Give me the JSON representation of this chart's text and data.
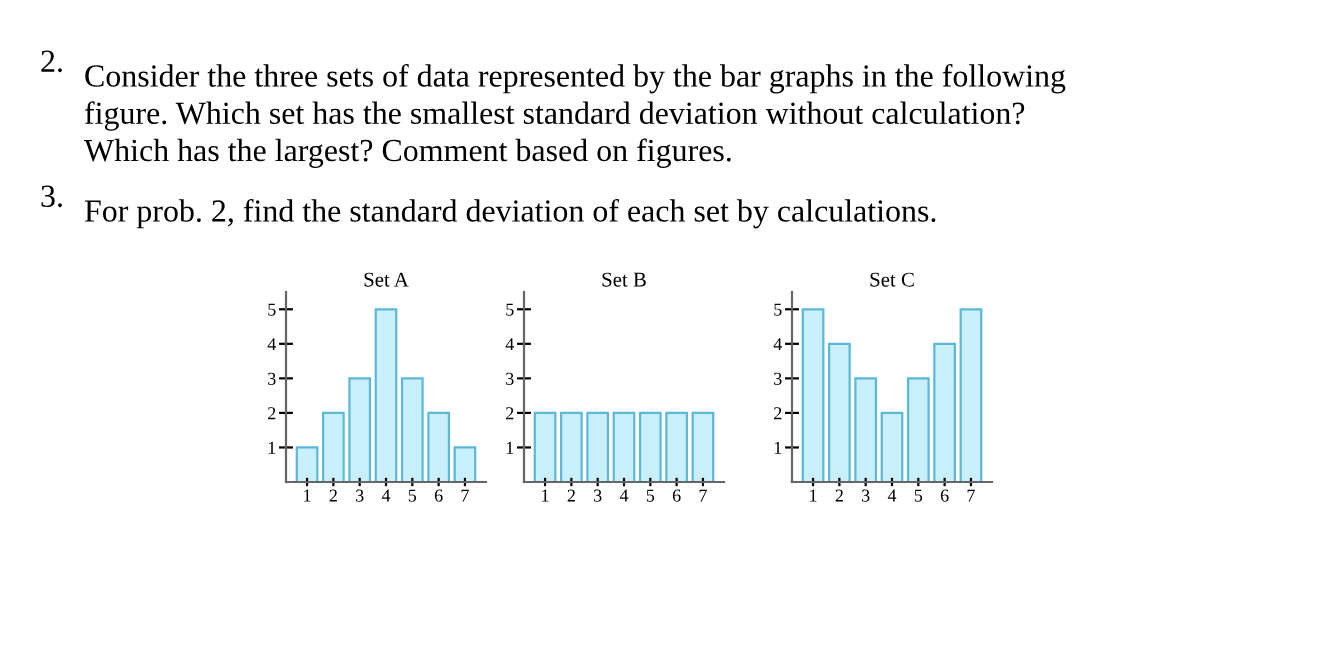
{
  "chart_data": [
    {
      "type": "bar",
      "title": "Set A",
      "categories": [
        "1",
        "2",
        "3",
        "4",
        "5",
        "6",
        "7"
      ],
      "series": [
        {
          "color": "#c8effb",
          "values": [
            1,
            2,
            3,
            5,
            3,
            2,
            1
          ]
        }
      ],
      "ylim": [
        0,
        5.5
      ],
      "yticks": [
        1,
        2,
        3,
        4,
        5
      ],
      "grid": false,
      "legend": false,
      "annotations": [
        "2. Consider the three sets of data represented by the bar graphs in the following\nfigure. Which set has the smallest standard deviation without calculation?\nWhich has the largest? Comment based on figures.",
        "3. For prob. 2, find the standard deviation of each set by calculations."
      ]
    },
    {
      "type": "bar",
      "title": "Set B",
      "categories": [
        "1",
        "2",
        "3",
        "4",
        "5",
        "6",
        "7"
      ],
      "series": [
        {
          "color": "#c8effb",
          "values": [
            2,
            2,
            2,
            2,
            2,
            2,
            2
          ]
        }
      ],
      "ylim": [
        0,
        5.5
      ],
      "yticks": [
        1,
        2,
        3,
        4,
        5
      ],
      "grid": false,
      "legend": false
    },
    {
      "type": "bar",
      "title": "Set C",
      "categories": [
        "1",
        "2",
        "3",
        "4",
        "5",
        "6",
        "7"
      ],
      "series": [
        {
          "color": "#c8effb",
          "values": [
            5,
            4,
            3,
            2,
            3,
            4,
            5
          ]
        }
      ],
      "ylim": [
        0,
        5.5
      ],
      "yticks": [
        1,
        2,
        3,
        4,
        5
      ],
      "grid": false,
      "legend": false
    }
  ]
}
